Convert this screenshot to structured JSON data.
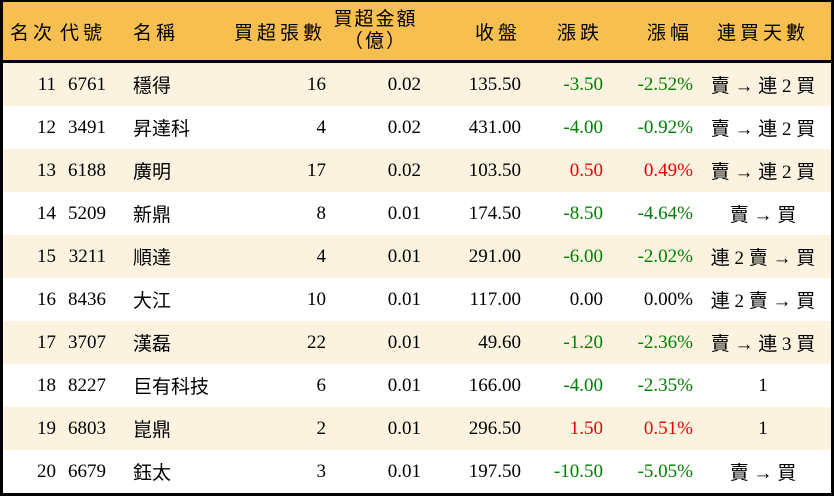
{
  "colors": {
    "header_bg": "#F7BF4F",
    "row_alt_bg": "#FBF3E0",
    "row_bg": "#FFFFFF",
    "up": "#EE0000",
    "down": "#008000",
    "flat": "#000000",
    "border": "#000000"
  },
  "table": {
    "columns": {
      "rank": {
        "label": "名次"
      },
      "code": {
        "label": "代號"
      },
      "name": {
        "label": "名稱"
      },
      "volume": {
        "label": "買超張數"
      },
      "amount": {
        "label": "買超金額",
        "label_line2": "（億）"
      },
      "close": {
        "label": "收盤"
      },
      "change": {
        "label": "漲跌"
      },
      "pct": {
        "label": "漲幅"
      },
      "streak": {
        "label": "連買天數"
      }
    },
    "rows": [
      {
        "rank": "11",
        "code": "6761",
        "name": "穩得",
        "volume": "16",
        "amount": "0.02",
        "close": "135.50",
        "change": "-3.50",
        "pct": "-2.52%",
        "streak": "賣 → 連 2 買"
      },
      {
        "rank": "12",
        "code": "3491",
        "name": "昇達科",
        "volume": "4",
        "amount": "0.02",
        "close": "431.00",
        "change": "-4.00",
        "pct": "-0.92%",
        "streak": "賣 → 連 2 買"
      },
      {
        "rank": "13",
        "code": "6188",
        "name": "廣明",
        "volume": "17",
        "amount": "0.02",
        "close": "103.50",
        "change": "0.50",
        "pct": "0.49%",
        "streak": "賣 → 連 2 買"
      },
      {
        "rank": "14",
        "code": "5209",
        "name": "新鼎",
        "volume": "8",
        "amount": "0.01",
        "close": "174.50",
        "change": "-8.50",
        "pct": "-4.64%",
        "streak": "賣 → 買"
      },
      {
        "rank": "15",
        "code": "3211",
        "name": "順達",
        "volume": "4",
        "amount": "0.01",
        "close": "291.00",
        "change": "-6.00",
        "pct": "-2.02%",
        "streak": "連 2 賣 → 買"
      },
      {
        "rank": "16",
        "code": "8436",
        "name": "大江",
        "volume": "10",
        "amount": "0.01",
        "close": "117.00",
        "change": "0.00",
        "pct": "0.00%",
        "streak": "連 2 賣 → 買"
      },
      {
        "rank": "17",
        "code": "3707",
        "name": "漢磊",
        "volume": "22",
        "amount": "0.01",
        "close": "49.60",
        "change": "-1.20",
        "pct": "-2.36%",
        "streak": "賣 → 連 3 買"
      },
      {
        "rank": "18",
        "code": "8227",
        "name": "巨有科技",
        "volume": "6",
        "amount": "0.01",
        "close": "166.00",
        "change": "-4.00",
        "pct": "-2.35%",
        "streak": "1"
      },
      {
        "rank": "19",
        "code": "6803",
        "name": "崑鼎",
        "volume": "2",
        "amount": "0.01",
        "close": "296.50",
        "change": "1.50",
        "pct": "0.51%",
        "streak": "1"
      },
      {
        "rank": "20",
        "code": "6679",
        "name": "鈺太",
        "volume": "3",
        "amount": "0.01",
        "close": "197.50",
        "change": "-10.50",
        "pct": "-5.05%",
        "streak": "賣 → 買"
      }
    ]
  }
}
